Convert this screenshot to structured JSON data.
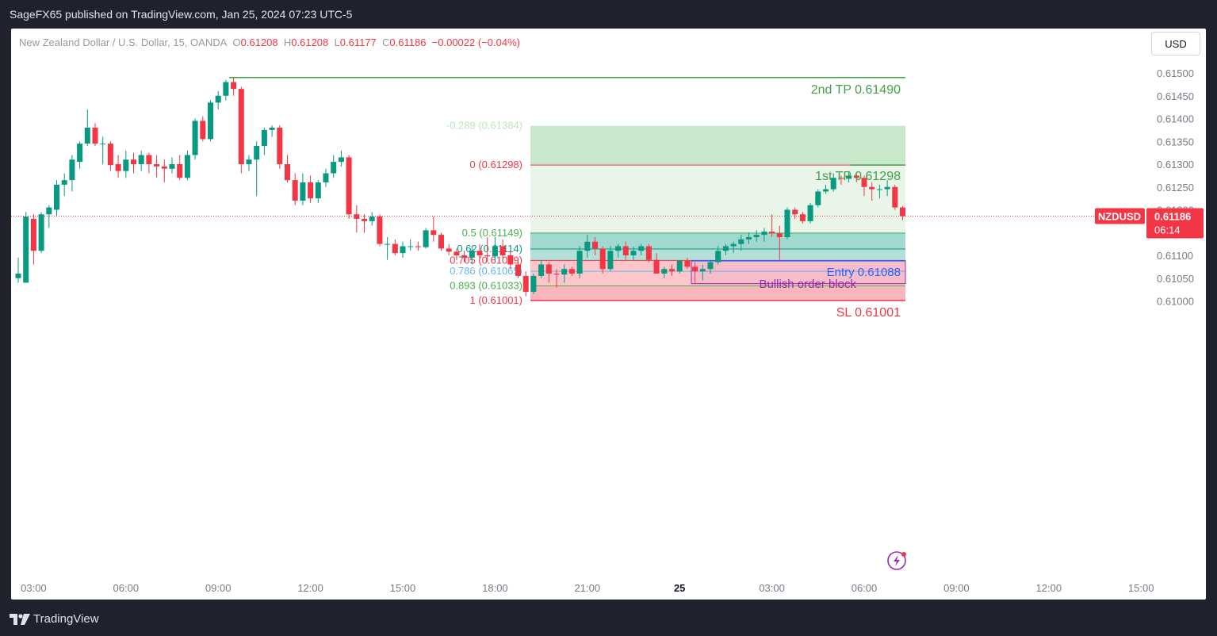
{
  "header": {
    "published": "SageFX65 published on TradingView.com, Jan 25, 2024 07:23 UTC-5"
  },
  "footer": {
    "brand": "TradingView"
  },
  "currency_button": "USD",
  "legend": {
    "symbol": "New Zealand Dollar / U.S. Dollar, 15, OANDA",
    "o_label": "O",
    "o_value": "0.61208",
    "h_label": "H",
    "h_value": "0.61208",
    "l_label": "L",
    "l_value": "0.61177",
    "c_label": "C",
    "c_value": "0.61186",
    "change": "−0.00022 (−0.04%)"
  },
  "price_tag": {
    "symbol": "NZDUSD",
    "price": "0.61186",
    "countdown": "06:14"
  },
  "colors": {
    "up": "#089981",
    "down": "#f23645",
    "fib_red": "#f23645",
    "fib_green": "#4caf50",
    "fib_teal": "#089981",
    "fib_blue": "#64b5f6",
    "entry": "#2962ff",
    "ob": "#9c27b0"
  },
  "chart_data": {
    "type": "candlestick",
    "symbol": "NZDUSD",
    "interval": "15",
    "ylim": [
      0.60955,
      0.61525
    ],
    "y_ticks": [
      "0.61500",
      "0.61450",
      "0.61400",
      "0.61350",
      "0.61300",
      "0.61250",
      "0.61200",
      "0.61150",
      "0.61100",
      "0.61050",
      "0.61000"
    ],
    "x_ticks": [
      {
        "label": "03:00",
        "bar": 2
      },
      {
        "label": "06:00",
        "bar": 14
      },
      {
        "label": "09:00",
        "bar": 26
      },
      {
        "label": "12:00",
        "bar": 38
      },
      {
        "label": "15:00",
        "bar": 50
      },
      {
        "label": "18:00",
        "bar": 62
      },
      {
        "label": "21:00",
        "bar": 74
      },
      {
        "label": "25",
        "bar": 86
      },
      {
        "label": "03:00",
        "bar": 98
      },
      {
        "label": "06:00",
        "bar": 110
      },
      {
        "label": "09:00",
        "bar": 122
      },
      {
        "label": "12:00",
        "bar": 134
      },
      {
        "label": "15:00",
        "bar": 146
      }
    ],
    "candles": [
      [
        0.6105,
        0.61095,
        0.6104,
        0.6106
      ],
      [
        0.6104,
        0.61195,
        0.6104,
        0.61185
      ],
      [
        0.6118,
        0.6119,
        0.6108,
        0.6111
      ],
      [
        0.6111,
        0.61195,
        0.61105,
        0.6119
      ],
      [
        0.6119,
        0.6121,
        0.6116,
        0.61205
      ],
      [
        0.612,
        0.61265,
        0.61185,
        0.61255
      ],
      [
        0.61255,
        0.6128,
        0.6123,
        0.61265
      ],
      [
        0.61265,
        0.6132,
        0.6124,
        0.6131
      ],
      [
        0.61305,
        0.6135,
        0.6129,
        0.61345
      ],
      [
        0.61345,
        0.6142,
        0.6134,
        0.6138
      ],
      [
        0.6138,
        0.6139,
        0.6134,
        0.61345
      ],
      [
        0.61345,
        0.6136,
        0.613,
        0.61345
      ],
      [
        0.61345,
        0.6135,
        0.61285,
        0.61298
      ],
      [
        0.613,
        0.6132,
        0.6127,
        0.61285
      ],
      [
        0.61285,
        0.6133,
        0.6127,
        0.6131
      ],
      [
        0.6131,
        0.61325,
        0.6128,
        0.613
      ],
      [
        0.613,
        0.6133,
        0.61285,
        0.6132
      ],
      [
        0.6132,
        0.61325,
        0.6128,
        0.613
      ],
      [
        0.613,
        0.6132,
        0.6127,
        0.61295
      ],
      [
        0.61295,
        0.6131,
        0.6126,
        0.6129
      ],
      [
        0.6129,
        0.61315,
        0.6128,
        0.613
      ],
      [
        0.613,
        0.6132,
        0.61265,
        0.6127
      ],
      [
        0.6127,
        0.6133,
        0.61265,
        0.6132
      ],
      [
        0.6132,
        0.614,
        0.6131,
        0.61395
      ],
      [
        0.61395,
        0.61405,
        0.6135,
        0.61355
      ],
      [
        0.61355,
        0.6144,
        0.6135,
        0.61435
      ],
      [
        0.61435,
        0.6146,
        0.6142,
        0.6145
      ],
      [
        0.6145,
        0.61485,
        0.6144,
        0.6148
      ],
      [
        0.6148,
        0.6149,
        0.6145,
        0.61465
      ],
      [
        0.61465,
        0.6147,
        0.6128,
        0.613
      ],
      [
        0.613,
        0.6132,
        0.61285,
        0.6131
      ],
      [
        0.6131,
        0.6135,
        0.6123,
        0.6134
      ],
      [
        0.6134,
        0.6138,
        0.6132,
        0.61375
      ],
      [
        0.61375,
        0.61385,
        0.6136,
        0.6138
      ],
      [
        0.6138,
        0.61385,
        0.6129,
        0.613
      ],
      [
        0.613,
        0.6132,
        0.6126,
        0.61265
      ],
      [
        0.61265,
        0.6128,
        0.6121,
        0.6122
      ],
      [
        0.6122,
        0.6128,
        0.6121,
        0.6126
      ],
      [
        0.6126,
        0.61275,
        0.61215,
        0.61225
      ],
      [
        0.61225,
        0.61265,
        0.61215,
        0.6126
      ],
      [
        0.6126,
        0.6129,
        0.6125,
        0.6128
      ],
      [
        0.6128,
        0.6132,
        0.6127,
        0.61305
      ],
      [
        0.61305,
        0.6133,
        0.61295,
        0.61315
      ],
      [
        0.61315,
        0.6132,
        0.6118,
        0.6119
      ],
      [
        0.6119,
        0.6121,
        0.6115,
        0.6118
      ],
      [
        0.6118,
        0.6119,
        0.6115,
        0.61175
      ],
      [
        0.61175,
        0.61195,
        0.61165,
        0.61185
      ],
      [
        0.61185,
        0.6119,
        0.6112,
        0.61125
      ],
      [
        0.61125,
        0.6114,
        0.6109,
        0.61125
      ],
      [
        0.61125,
        0.61135,
        0.611,
        0.61105
      ],
      [
        0.61105,
        0.6113,
        0.61095,
        0.6112
      ],
      [
        0.6112,
        0.61135,
        0.6111,
        0.6112
      ],
      [
        0.6112,
        0.6113,
        0.6111,
        0.61118
      ],
      [
        0.61118,
        0.6116,
        0.61115,
        0.61155
      ],
      [
        0.61155,
        0.61185,
        0.6113,
        0.61145
      ],
      [
        0.61145,
        0.6115,
        0.6111,
        0.61115
      ],
      [
        0.61115,
        0.61125,
        0.611,
        0.61108
      ],
      [
        0.61108,
        0.61115,
        0.6109,
        0.611
      ],
      [
        0.611,
        0.6111,
        0.61085,
        0.61095
      ],
      [
        0.61095,
        0.6112,
        0.6108,
        0.6111
      ],
      [
        0.6111,
        0.61125,
        0.6109,
        0.611
      ],
      [
        0.611,
        0.6114,
        0.61085,
        0.61098
      ],
      [
        0.61098,
        0.6114,
        0.61085,
        0.6112
      ],
      [
        0.6112,
        0.61135,
        0.6109,
        0.611
      ],
      [
        0.611,
        0.6111,
        0.6107,
        0.6108
      ],
      [
        0.6108,
        0.6109,
        0.6105,
        0.61055
      ],
      [
        0.61055,
        0.61065,
        0.6101,
        0.6102
      ],
      [
        0.6102,
        0.6106,
        0.61015,
        0.61055
      ],
      [
        0.61055,
        0.6109,
        0.6105,
        0.6108
      ],
      [
        0.6108,
        0.61085,
        0.6104,
        0.6106
      ],
      [
        0.6106,
        0.6107,
        0.6103,
        0.61058
      ],
      [
        0.61058,
        0.6108,
        0.6104,
        0.6107
      ],
      [
        0.6107,
        0.61075,
        0.61055,
        0.6106
      ],
      [
        0.6106,
        0.6112,
        0.6105,
        0.6111
      ],
      [
        0.6111,
        0.61145,
        0.61095,
        0.6113
      ],
      [
        0.6113,
        0.6114,
        0.611,
        0.61115
      ],
      [
        0.61115,
        0.6112,
        0.6106,
        0.6107
      ],
      [
        0.6107,
        0.6112,
        0.61065,
        0.6111
      ],
      [
        0.6111,
        0.61125,
        0.61095,
        0.6112
      ],
      [
        0.6112,
        0.6113,
        0.6109,
        0.611
      ],
      [
        0.611,
        0.6112,
        0.6109,
        0.6111
      ],
      [
        0.6111,
        0.61125,
        0.611,
        0.6112
      ],
      [
        0.6112,
        0.61125,
        0.61085,
        0.6109
      ],
      [
        0.6109,
        0.61105,
        0.6106,
        0.6106
      ],
      [
        0.6106,
        0.61075,
        0.6105,
        0.6107
      ],
      [
        0.6107,
        0.6108,
        0.61055,
        0.61065
      ],
      [
        0.61065,
        0.6109,
        0.6106,
        0.61088
      ],
      [
        0.61088,
        0.61095,
        0.6107,
        0.61075
      ],
      [
        0.61075,
        0.61085,
        0.6104,
        0.61065
      ],
      [
        0.61065,
        0.6108,
        0.61045,
        0.6107
      ],
      [
        0.6107,
        0.6109,
        0.6106,
        0.61085
      ],
      [
        0.61085,
        0.6112,
        0.6108,
        0.6111
      ],
      [
        0.6111,
        0.61125,
        0.611,
        0.6112
      ],
      [
        0.6112,
        0.6113,
        0.61105,
        0.61125
      ],
      [
        0.61125,
        0.61145,
        0.6111,
        0.61135
      ],
      [
        0.61135,
        0.6115,
        0.61125,
        0.6114
      ],
      [
        0.6114,
        0.61155,
        0.6113,
        0.61145
      ],
      [
        0.61145,
        0.6116,
        0.6113,
        0.61152
      ],
      [
        0.61152,
        0.6119,
        0.6114,
        0.61148
      ],
      [
        0.61148,
        0.61165,
        0.6109,
        0.6114
      ],
      [
        0.6114,
        0.61205,
        0.61135,
        0.612
      ],
      [
        0.612,
        0.61205,
        0.6118,
        0.6119
      ],
      [
        0.6119,
        0.61195,
        0.6117,
        0.61175
      ],
      [
        0.61175,
        0.61215,
        0.6117,
        0.6121
      ],
      [
        0.6121,
        0.61245,
        0.61205,
        0.6124
      ],
      [
        0.6124,
        0.61255,
        0.61235,
        0.61245
      ],
      [
        0.61245,
        0.6128,
        0.6124,
        0.6127
      ],
      [
        0.6127,
        0.61275,
        0.61255,
        0.61268
      ],
      [
        0.61268,
        0.61285,
        0.6126,
        0.61275
      ],
      [
        0.61275,
        0.6128,
        0.6126,
        0.6127
      ],
      [
        0.6127,
        0.61275,
        0.6123,
        0.6125
      ],
      [
        0.6125,
        0.6126,
        0.6122,
        0.61245
      ],
      [
        0.61245,
        0.61255,
        0.61225,
        0.61245
      ],
      [
        0.61245,
        0.61265,
        0.6123,
        0.6125
      ],
      [
        0.6125,
        0.61255,
        0.612,
        0.61205
      ],
      [
        0.61205,
        0.61208,
        0.61177,
        0.61186
      ]
    ],
    "fib_levels": [
      {
        "label": "-0.289 (0.61384)",
        "price": 0.61384
      },
      {
        "label": "0 (0.61298)",
        "price": 0.61298
      },
      {
        "label": "0.5 (0.61149)",
        "price": 0.61149
      },
      {
        "label": "0.62 (0.61114)",
        "price": 0.61114
      },
      {
        "label": "0.705 (0.61089)",
        "price": 0.61089
      },
      {
        "label": "0.786 (0.61065)",
        "price": 0.61065
      },
      {
        "label": "0.893 (0.61033)",
        "price": 0.61033
      },
      {
        "label": "1 (0.61001)",
        "price": 0.61001
      }
    ],
    "annotations": {
      "tp2": {
        "label": "2nd TP 0.61490",
        "price": 0.6149
      },
      "tp1": {
        "label": "1st TP 0.61298",
        "price": 0.61298
      },
      "entry": {
        "label": "Entry  0.61088",
        "price": 0.61088
      },
      "sl": {
        "label": "SL 0.61001",
        "price": 0.61001
      },
      "order_block": {
        "label": "Bullish order block",
        "top": 0.61088,
        "bottom": 0.61038
      }
    },
    "last_price": 0.61186
  }
}
